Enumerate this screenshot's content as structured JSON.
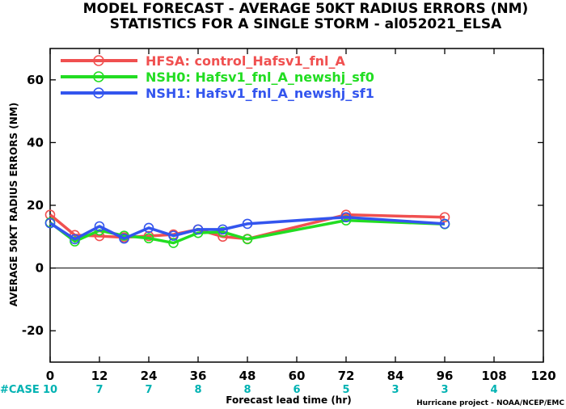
{
  "colors": {
    "hfsa": "#f05050",
    "nsh0": "#22dd22",
    "nsh1": "#3355ee",
    "case": "#00b2b2"
  },
  "title": {
    "line1": "MODEL FORECAST - AVERAGE 50KT RADIUS ERRORS (NM)",
    "line2": "STATISTICS FOR A SINGLE STORM - al052021_ELSA"
  },
  "credit": "Hurricane project - NOAA/NCEP/EMC",
  "case_row": {
    "label": "#CASE",
    "entries": [
      {
        "x": 0,
        "text": "10"
      },
      {
        "x": 12,
        "text": "7"
      },
      {
        "x": 24,
        "text": "7"
      },
      {
        "x": 36,
        "text": "8"
      },
      {
        "x": 48,
        "text": "8"
      },
      {
        "x": 60,
        "text": "6"
      },
      {
        "x": 72,
        "text": "5"
      },
      {
        "x": 84,
        "text": "3"
      },
      {
        "x": 96,
        "text": "3"
      },
      {
        "x": 108,
        "text": "4"
      }
    ]
  },
  "chart_data": {
    "type": "line",
    "xlabel": "Forecast lead time (hr)",
    "ylabel": "AVERAGE 50KT RADIUS ERRORS (NM)",
    "xlim": [
      0,
      120
    ],
    "ylim": [
      -30,
      70
    ],
    "xticks": [
      0,
      12,
      24,
      36,
      48,
      60,
      72,
      84,
      96,
      108,
      120
    ],
    "yticks": [
      -20,
      0,
      20,
      40,
      60
    ],
    "grid": false,
    "zero_line": true,
    "legend_position": "top-left",
    "series": [
      {
        "name": "HFSA: control_Hafsv1_fnl_A",
        "color": "#f05050",
        "x": [
          0,
          6,
          12,
          18,
          24,
          30,
          36,
          42,
          48,
          72,
          96
        ],
        "y": [
          17.0,
          10.5,
          10.2,
          9.8,
          10.2,
          10.7,
          12.3,
          10.0,
          9.3,
          17.0,
          16.2
        ]
      },
      {
        "name": "NSH0: Hafsv1_fnl_A_newshj_sf0",
        "color": "#22dd22",
        "x": [
          0,
          6,
          12,
          18,
          24,
          30,
          36,
          42,
          48,
          72,
          96
        ],
        "y": [
          14.5,
          8.5,
          12.0,
          10.3,
          9.5,
          8.0,
          11.2,
          11.5,
          9.2,
          15.2,
          14.0
        ]
      },
      {
        "name": "NSH1: Hafsv1_fnl_A_newshj_sf1",
        "color": "#3355ee",
        "x": [
          0,
          6,
          12,
          18,
          24,
          30,
          36,
          42,
          48,
          72,
          96
        ],
        "y": [
          14.3,
          9.2,
          13.3,
          9.4,
          12.8,
          10.3,
          12.3,
          12.3,
          14.1,
          16.2,
          14.1
        ]
      }
    ]
  }
}
